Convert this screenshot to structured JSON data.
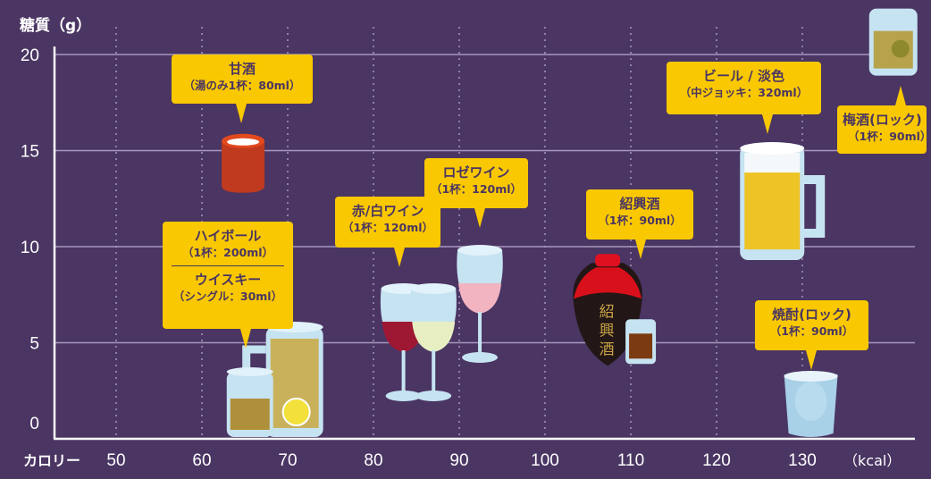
{
  "chart_data": {
    "type": "scatter",
    "title": "",
    "ylabel": "糖質（g）",
    "xlabel": "カロリー",
    "xunit": "（kcal）",
    "xlim": [
      40,
      145
    ],
    "ylim": [
      0,
      20
    ],
    "xticks": [
      "50",
      "60",
      "70",
      "80",
      "90",
      "100",
      "110",
      "120",
      "130"
    ],
    "yticks": [
      "0",
      "5",
      "10",
      "15",
      "20"
    ],
    "grid": {
      "horizontal": true,
      "vertical_dotted": true
    },
    "colors": {
      "background": "#4a3563",
      "bubble": "#f9c800",
      "text": "#4a3563",
      "grid": "#9d8fb0"
    },
    "points": [
      {
        "name": "甘酒",
        "serving": "（湯のみ1杯：80ml）",
        "kcal": 64.8,
        "carbs": 12.8,
        "icon": "amazake-cup-icon"
      },
      {
        "name": "ハイボール",
        "serving": "（1杯：200ml）",
        "kcal": 70.8,
        "carbs": 0,
        "icon": "highball-mug-icon"
      },
      {
        "name": "ウイスキー",
        "serving": "（シングル：30ml）",
        "kcal": 65.6,
        "carbs": 0,
        "icon": "whisky-glass-icon"
      },
      {
        "name": "赤ワイン",
        "serving": "（1杯：120ml）",
        "kcal": 83.5,
        "carbs": 2.0,
        "icon": "red-wine-glass-icon"
      },
      {
        "name": "白ワイン",
        "serving": "（1杯：120ml）",
        "kcal": 87,
        "carbs": 2.0,
        "icon": "white-wine-glass-icon"
      },
      {
        "name": "ロゼワイン",
        "serving": "（1杯：120ml）",
        "kcal": 92.4,
        "carbs": 4.0,
        "icon": "rose-wine-glass-icon"
      },
      {
        "name": "紹興酒",
        "serving": "（1杯：90ml）",
        "kcal": 107.3,
        "carbs": 3.8,
        "icon": "shaoxing-bottle-icon"
      },
      {
        "name": "ビール / 淡色",
        "serving": "（中ジョッキ：320ml）",
        "kcal": 126.9,
        "carbs": 9.3,
        "icon": "beer-mug-icon"
      },
      {
        "name": "梅酒(ロック)",
        "serving": "（1杯：90ml）",
        "kcal": 140.6,
        "carbs": 18.9,
        "icon": "umeshu-glass-icon"
      },
      {
        "name": "焼酎(ロック)",
        "serving": "（1杯：90ml）",
        "kcal": 131,
        "carbs": 0,
        "icon": "shochu-glass-icon"
      }
    ]
  },
  "labels": {
    "amazake": {
      "title": "甘酒",
      "sub": "（湯のみ1杯：80ml）"
    },
    "highball": {
      "title": "ハイボール",
      "sub": "（1杯：200ml）",
      "title2": "ウイスキー",
      "sub2": "（シングル：30ml）"
    },
    "wine": {
      "title": "赤/白ワイン",
      "sub": "（1杯：120ml）"
    },
    "rose": {
      "title": "ロゼワイン",
      "sub": "（1杯：120ml）"
    },
    "shaoxing": {
      "title": "紹興酒",
      "sub": "（1杯：90ml）",
      "bottle_text": "紹興酒"
    },
    "beer": {
      "title": "ビール / 淡色",
      "sub": "（中ジョッキ：320ml）"
    },
    "umeshu": {
      "title": "梅酒(ロック)",
      "sub": "（1杯：90ml）"
    },
    "shochu": {
      "title": "焼酎(ロック)",
      "sub": "（1杯：90ml）"
    }
  }
}
